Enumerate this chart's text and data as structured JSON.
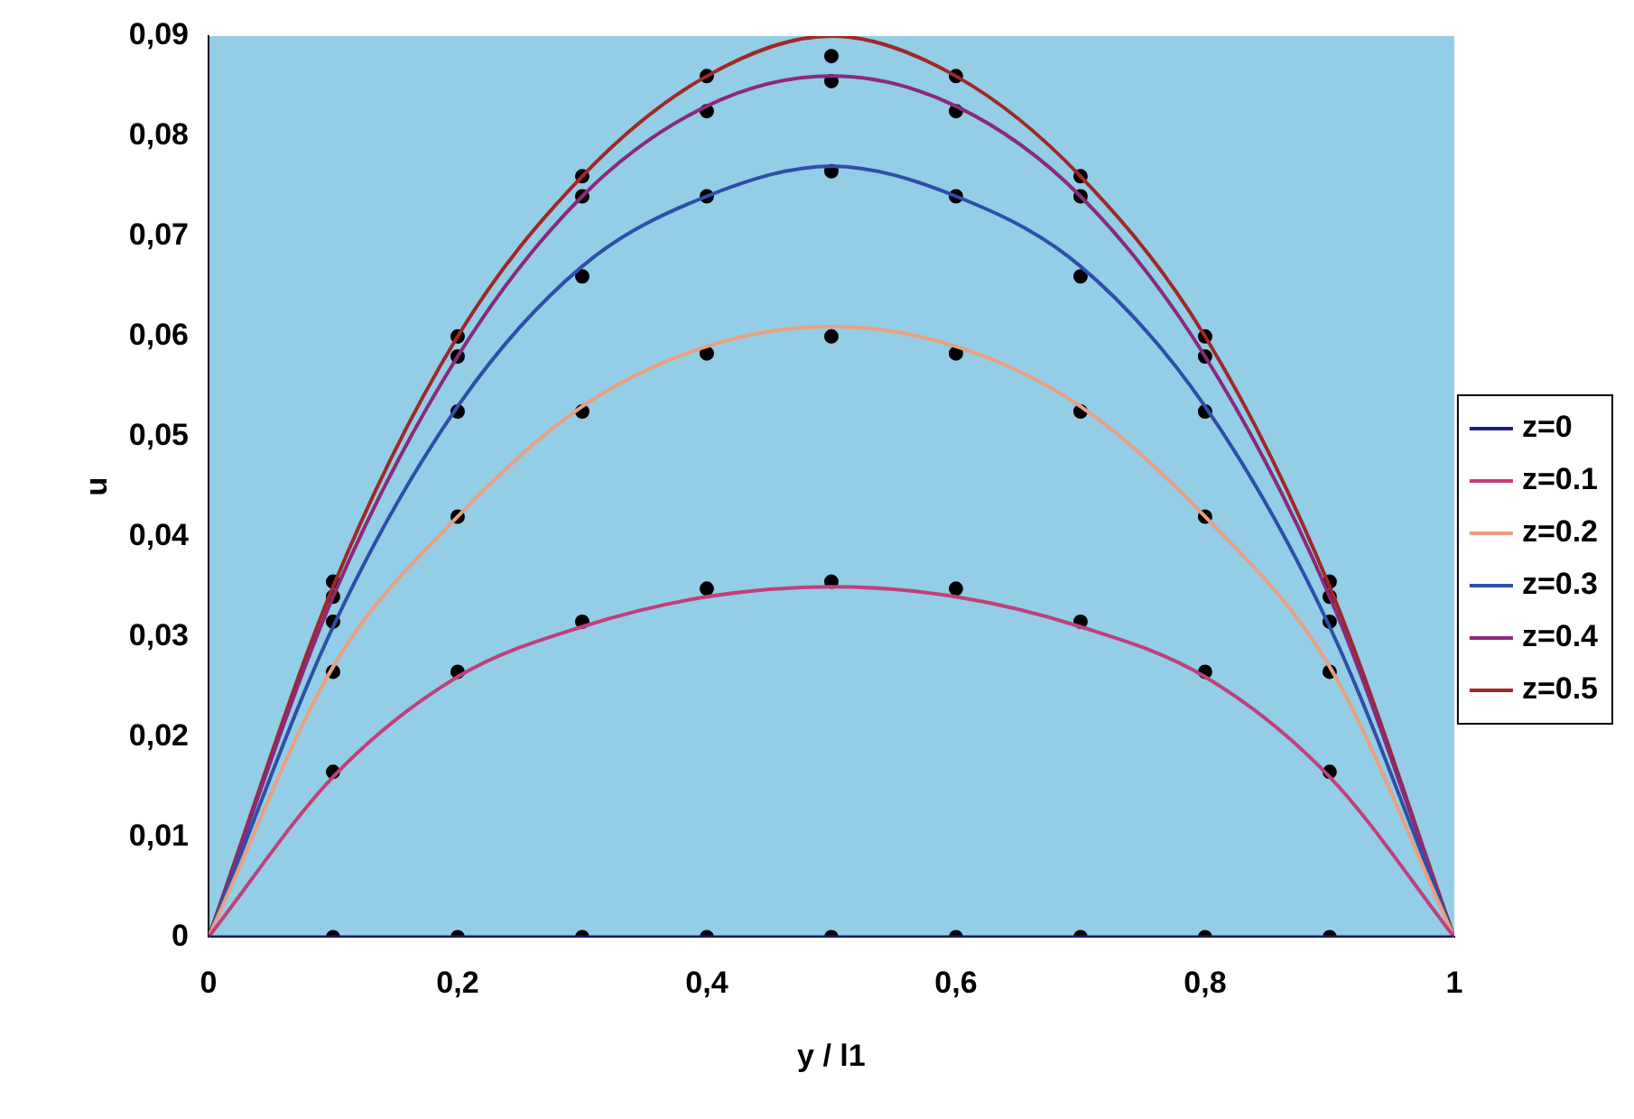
{
  "chart_data": {
    "type": "line",
    "xlabel": "y / l1",
    "ylabel": "u",
    "legend": "right",
    "grid": false,
    "marker": "none",
    "line_style": "solid",
    "x": [
      0,
      0.1,
      0.2,
      0.3,
      0.4,
      0.5,
      0.6,
      0.7,
      0.8,
      0.9,
      1
    ],
    "xlim": [
      0,
      1
    ],
    "xticks": [
      0,
      {
        "value": 0.2,
        "label": "0,2"
      },
      {
        "value": 0.4,
        "label": "0,4"
      },
      {
        "value": 0.6,
        "label": "0,6"
      },
      {
        "value": 0.8,
        "label": "0,8"
      },
      1
    ],
    "ylim": [
      0,
      0.09
    ],
    "yticks": [
      0,
      {
        "value": 0.01,
        "label": "0,01"
      },
      {
        "value": 0.02,
        "label": "0,02"
      },
      {
        "value": 0.03,
        "label": "0,03"
      },
      {
        "value": 0.04,
        "label": "0,04"
      },
      {
        "value": 0.05,
        "label": "0,05"
      },
      {
        "value": 0.06,
        "label": "0,06"
      },
      {
        "value": 0.07,
        "label": "0,07"
      },
      {
        "value": 0.08,
        "label": "0,08"
      },
      {
        "value": 0.09,
        "label": "0,09"
      }
    ],
    "series": [
      {
        "name": "z=0",
        "color": "#1f1f7a",
        "values": [
          0,
          0,
          0,
          0,
          0,
          0,
          0,
          0,
          0,
          0,
          0
        ]
      },
      {
        "name": "z=0.1",
        "color": "#c0407a",
        "values": [
          0,
          0.016,
          0.026,
          0.031,
          0.034,
          0.035,
          0.034,
          0.031,
          0.026,
          0.016,
          0
        ]
      },
      {
        "name": "z=0.2",
        "color": "#e8a080",
        "values": [
          0,
          0.027,
          0.042,
          0.053,
          0.059,
          0.061,
          0.059,
          0.053,
          0.042,
          0.027,
          0
        ]
      },
      {
        "name": "z=0.3",
        "color": "#2e4fa8",
        "values": [
          0,
          0.031,
          0.053,
          0.067,
          0.074,
          0.077,
          0.074,
          0.067,
          0.053,
          0.031,
          0
        ]
      },
      {
        "name": "z=0.4",
        "color": "#8a2a7a",
        "values": [
          0,
          0.034,
          0.058,
          0.074,
          0.083,
          0.086,
          0.083,
          0.074,
          0.058,
          0.034,
          0
        ]
      },
      {
        "name": "z=0.5",
        "color": "#a02828",
        "values": [
          0,
          0.035,
          0.06,
          0.076,
          0.086,
          0.09,
          0.086,
          0.076,
          0.06,
          0.035,
          0
        ]
      },
      {
        "type": "scatter",
        "marker": "circle",
        "color": "#000000",
        "x": [
          0.1,
          0.2,
          0.3,
          0.4,
          0.5,
          0.6,
          0.7,
          0.8,
          0.9,
          0.1,
          0.2,
          0.3,
          0.4,
          0.5,
          0.6,
          0.7,
          0.8,
          0.9,
          0.1,
          0.2,
          0.3,
          0.4,
          0.5,
          0.6,
          0.7,
          0.8,
          0.9,
          0.1,
          0.2,
          0.3,
          0.4,
          0.5,
          0.6,
          0.7,
          0.8,
          0.9,
          0.1,
          0.2,
          0.3,
          0.4,
          0.5,
          0.6,
          0.7,
          0.8,
          0.9,
          0.1,
          0.2,
          0.3,
          0.4,
          0.5,
          0.6,
          0.7,
          0.8,
          0.9
        ],
        "values": [
          0,
          0,
          0,
          0,
          0,
          0,
          0,
          0,
          0,
          0.0165,
          0.0265,
          0.0315,
          0.0348,
          0.0355,
          0.0348,
          0.0315,
          0.0265,
          0.0165,
          0.0265,
          0.042,
          0.0525,
          0.0583,
          0.06,
          0.0583,
          0.0525,
          0.042,
          0.0265,
          0.0315,
          0.0525,
          0.066,
          0.074,
          0.0765,
          0.074,
          0.066,
          0.0525,
          0.0315,
          0.034,
          0.058,
          0.074,
          0.0825,
          0.0855,
          0.0825,
          0.074,
          0.058,
          0.034,
          0.0355,
          0.06,
          0.076,
          0.086,
          0.088,
          0.086,
          0.076,
          0.06,
          0.0355
        ]
      }
    ]
  }
}
